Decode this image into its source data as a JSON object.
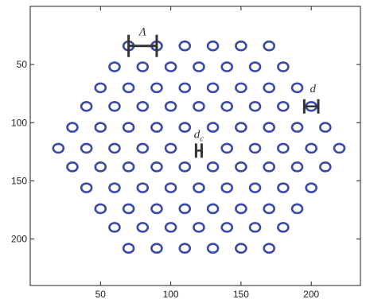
{
  "chart_data": {
    "type": "scatter",
    "title": "",
    "xlabel": "",
    "ylabel": "",
    "x_ticks": [
      50,
      100,
      150,
      200
    ],
    "y_ticks": [
      50,
      100,
      150,
      200
    ],
    "xlim": [
      0,
      235
    ],
    "ylim": [
      240,
      0
    ],
    "y_axis_inverted": true,
    "grid": false,
    "marker": "hollow-circle",
    "colors": {
      "marker": "#3b4aa6",
      "axis": "#222222",
      "annotation": "#333333"
    },
    "lattice": {
      "rows": [
        {
          "y": 34,
          "x": [
            70,
            90,
            110,
            130,
            150,
            170
          ]
        },
        {
          "y": 52,
          "x": [
            60,
            80,
            100,
            120,
            140,
            160,
            180
          ]
        },
        {
          "y": 70,
          "x": [
            50,
            70,
            90,
            110,
            130,
            150,
            170,
            190
          ]
        },
        {
          "y": 86,
          "x": [
            40,
            60,
            80,
            100,
            120,
            140,
            160,
            180,
            200
          ]
        },
        {
          "y": 104,
          "x": [
            30,
            50,
            70,
            90,
            110,
            130,
            150,
            170,
            190,
            210
          ]
        },
        {
          "y": 122,
          "x": [
            20,
            40,
            60,
            80,
            100,
            140,
            160,
            180,
            200,
            220
          ]
        },
        {
          "y": 138,
          "x": [
            30,
            50,
            70,
            90,
            110,
            130,
            150,
            170,
            190,
            210
          ]
        },
        {
          "y": 156,
          "x": [
            40,
            60,
            80,
            100,
            120,
            140,
            160,
            180,
            200
          ]
        },
        {
          "y": 174,
          "x": [
            50,
            70,
            90,
            110,
            130,
            150,
            170,
            190
          ]
        },
        {
          "y": 190,
          "x": [
            60,
            80,
            100,
            120,
            140,
            160,
            180
          ]
        },
        {
          "y": 208,
          "x": [
            70,
            90,
            110,
            130,
            150,
            170
          ]
        }
      ],
      "core_hole": {
        "x": 120,
        "y": 122
      }
    },
    "annotations": {
      "pitch_label": "Λ",
      "pitch_span": {
        "x1": 70,
        "x2": 90,
        "y": 34
      },
      "hole_label": "d",
      "hole_span": {
        "x1": 195,
        "x2": 205,
        "y": 86
      },
      "core_label_main": "d",
      "core_label_sub": "c",
      "core_span": {
        "x1": 118,
        "x2": 122,
        "y": 124
      }
    }
  }
}
